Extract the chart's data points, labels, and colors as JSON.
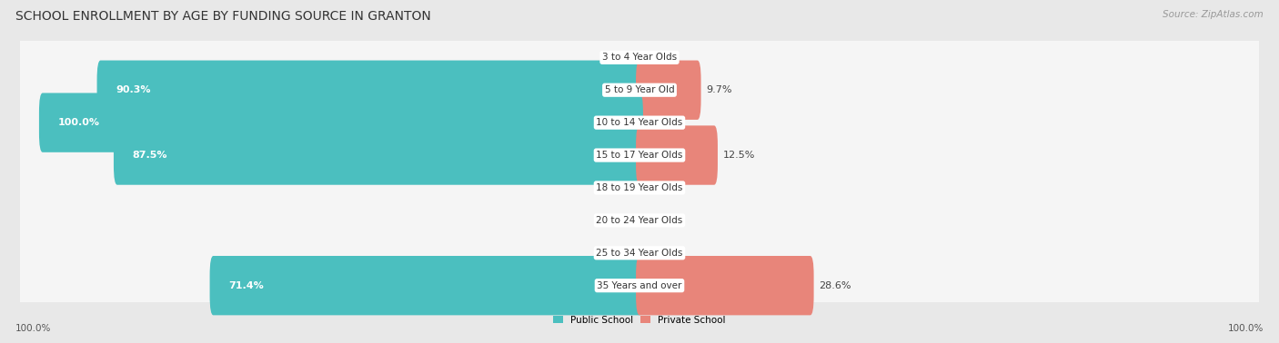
{
  "title": "SCHOOL ENROLLMENT BY AGE BY FUNDING SOURCE IN GRANTON",
  "source": "Source: ZipAtlas.com",
  "categories": [
    "3 to 4 Year Olds",
    "5 to 9 Year Old",
    "10 to 14 Year Olds",
    "15 to 17 Year Olds",
    "18 to 19 Year Olds",
    "20 to 24 Year Olds",
    "25 to 34 Year Olds",
    "35 Years and over"
  ],
  "public_values": [
    0.0,
    90.3,
    100.0,
    87.5,
    0.0,
    0.0,
    0.0,
    71.4
  ],
  "private_values": [
    0.0,
    9.7,
    0.0,
    12.5,
    0.0,
    0.0,
    0.0,
    28.6
  ],
  "public_color": "#4BBFBF",
  "private_color": "#E8857A",
  "public_label": "Public School",
  "private_label": "Private School",
  "bg_color": "#e8e8e8",
  "row_bg_color": "#f5f5f5",
  "bar_height": 0.62,
  "axis_label_left": "100.0%",
  "axis_label_right": "100.0%",
  "title_fontsize": 10,
  "label_fontsize": 8,
  "cat_fontsize": 7.5,
  "footer_fontsize": 7.5
}
